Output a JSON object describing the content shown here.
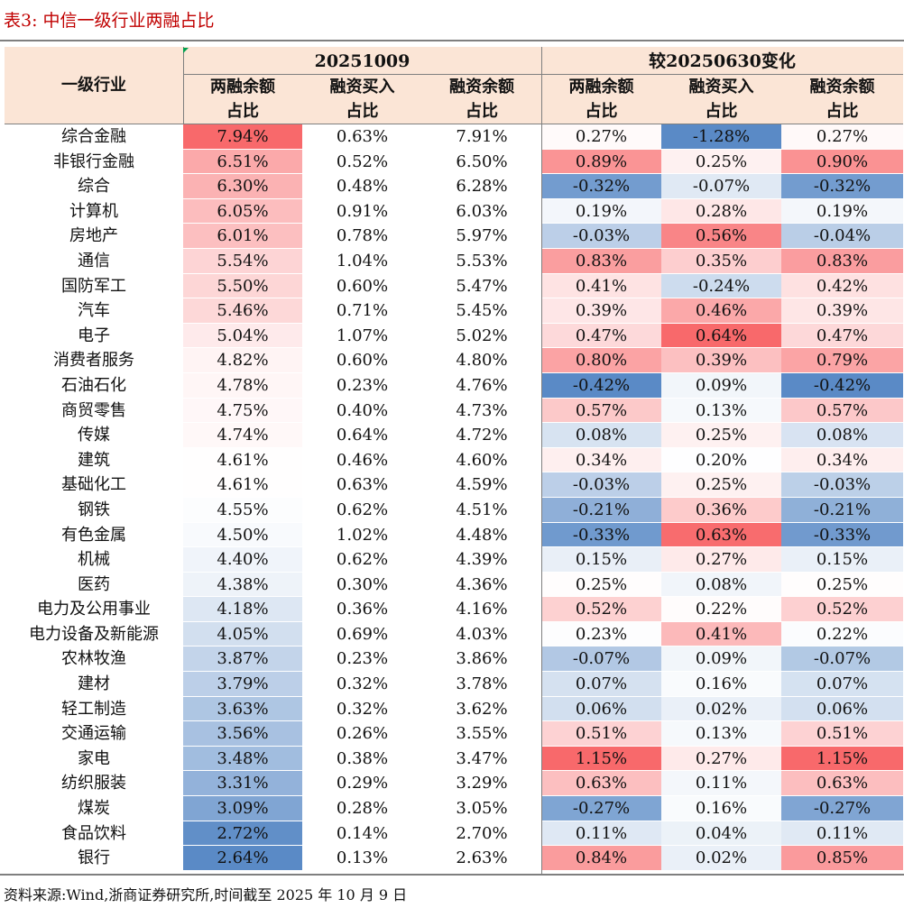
{
  "title": "表3:   中信一级行业两融占比",
  "header": {
    "industry_label": "一级行业",
    "group_current": "20251009",
    "group_change": "较20250630变化",
    "columns": [
      [
        "两融余额",
        "占比"
      ],
      [
        "融资买入",
        "占比"
      ],
      [
        "融资余额",
        "占比"
      ],
      [
        "两融余额",
        "占比"
      ],
      [
        "融资买入",
        "占比"
      ],
      [
        "融资余额",
        "占比"
      ]
    ]
  },
  "colors": {
    "header_bg": "#fbe5d6",
    "title_red": "#c00000",
    "heat_high": "#f8696b",
    "heat_low": "#5a8ac6",
    "heat_mid": "#ffffff"
  },
  "rows": [
    {
      "industry": "综合金融",
      "values": [
        "7.94%",
        "0.63%",
        "7.91%",
        "0.27%",
        "-1.28%",
        "0.27%"
      ]
    },
    {
      "industry": "非银行金融",
      "values": [
        "6.51%",
        "0.52%",
        "6.50%",
        "0.89%",
        "0.25%",
        "0.90%"
      ]
    },
    {
      "industry": "综合",
      "values": [
        "6.30%",
        "0.48%",
        "6.28%",
        "-0.32%",
        "-0.07%",
        "-0.32%"
      ]
    },
    {
      "industry": "计算机",
      "values": [
        "6.05%",
        "0.91%",
        "6.03%",
        "0.19%",
        "0.28%",
        "0.19%"
      ]
    },
    {
      "industry": "房地产",
      "values": [
        "6.01%",
        "0.78%",
        "5.97%",
        "-0.03%",
        "0.56%",
        "-0.04%"
      ]
    },
    {
      "industry": "通信",
      "values": [
        "5.54%",
        "1.04%",
        "5.53%",
        "0.83%",
        "0.35%",
        "0.83%"
      ]
    },
    {
      "industry": "国防军工",
      "values": [
        "5.50%",
        "0.60%",
        "5.47%",
        "0.41%",
        "-0.24%",
        "0.42%"
      ]
    },
    {
      "industry": "汽车",
      "values": [
        "5.46%",
        "0.71%",
        "5.45%",
        "0.39%",
        "0.46%",
        "0.39%"
      ]
    },
    {
      "industry": "电子",
      "values": [
        "5.04%",
        "1.07%",
        "5.02%",
        "0.47%",
        "0.64%",
        "0.47%"
      ]
    },
    {
      "industry": "消费者服务",
      "values": [
        "4.82%",
        "0.60%",
        "4.80%",
        "0.80%",
        "0.39%",
        "0.79%"
      ]
    },
    {
      "industry": "石油石化",
      "values": [
        "4.78%",
        "0.23%",
        "4.76%",
        "-0.42%",
        "0.09%",
        "-0.42%"
      ]
    },
    {
      "industry": "商贸零售",
      "values": [
        "4.75%",
        "0.40%",
        "4.73%",
        "0.57%",
        "0.13%",
        "0.57%"
      ]
    },
    {
      "industry": "传媒",
      "values": [
        "4.74%",
        "0.64%",
        "4.72%",
        "0.08%",
        "0.25%",
        "0.08%"
      ]
    },
    {
      "industry": "建筑",
      "values": [
        "4.61%",
        "0.46%",
        "4.60%",
        "0.34%",
        "0.20%",
        "0.34%"
      ]
    },
    {
      "industry": "基础化工",
      "values": [
        "4.61%",
        "0.63%",
        "4.59%",
        "-0.03%",
        "0.25%",
        "-0.03%"
      ]
    },
    {
      "industry": "钢铁",
      "values": [
        "4.55%",
        "0.62%",
        "4.51%",
        "-0.21%",
        "0.36%",
        "-0.21%"
      ]
    },
    {
      "industry": "有色金属",
      "values": [
        "4.50%",
        "1.02%",
        "4.48%",
        "-0.33%",
        "0.63%",
        "-0.33%"
      ]
    },
    {
      "industry": "机械",
      "values": [
        "4.40%",
        "0.62%",
        "4.39%",
        "0.15%",
        "0.27%",
        "0.15%"
      ]
    },
    {
      "industry": "医药",
      "values": [
        "4.38%",
        "0.30%",
        "4.36%",
        "0.25%",
        "0.08%",
        "0.25%"
      ]
    },
    {
      "industry": "电力及公用事业",
      "values": [
        "4.18%",
        "0.36%",
        "4.16%",
        "0.52%",
        "0.22%",
        "0.52%"
      ]
    },
    {
      "industry": "电力设备及新能源",
      "values": [
        "4.05%",
        "0.69%",
        "4.03%",
        "0.23%",
        "0.41%",
        "0.22%"
      ]
    },
    {
      "industry": "农林牧渔",
      "values": [
        "3.87%",
        "0.23%",
        "3.86%",
        "-0.07%",
        "0.09%",
        "-0.07%"
      ]
    },
    {
      "industry": "建材",
      "values": [
        "3.79%",
        "0.32%",
        "3.78%",
        "0.07%",
        "0.16%",
        "0.07%"
      ]
    },
    {
      "industry": "轻工制造",
      "values": [
        "3.63%",
        "0.32%",
        "3.62%",
        "0.06%",
        "0.02%",
        "0.06%"
      ]
    },
    {
      "industry": "交通运输",
      "values": [
        "3.56%",
        "0.26%",
        "3.55%",
        "0.51%",
        "0.13%",
        "0.51%"
      ]
    },
    {
      "industry": "家电",
      "values": [
        "3.48%",
        "0.38%",
        "3.47%",
        "1.15%",
        "0.27%",
        "1.15%"
      ]
    },
    {
      "industry": "纺织服装",
      "values": [
        "3.31%",
        "0.29%",
        "3.29%",
        "0.63%",
        "0.11%",
        "0.63%"
      ]
    },
    {
      "industry": "煤炭",
      "values": [
        "3.09%",
        "0.28%",
        "3.05%",
        "-0.27%",
        "0.16%",
        "-0.27%"
      ]
    },
    {
      "industry": "食品饮料",
      "values": [
        "2.72%",
        "0.14%",
        "2.70%",
        "0.11%",
        "0.04%",
        "0.11%"
      ]
    },
    {
      "industry": "银行",
      "values": [
        "2.64%",
        "0.13%",
        "2.63%",
        "0.84%",
        "0.02%",
        "0.85%"
      ]
    }
  ],
  "heat_columns": [
    0,
    3,
    4,
    5
  ],
  "source": "资料来源:Wind,浙商证券研究所,时间截至 2025 年 10 月 9 日"
}
